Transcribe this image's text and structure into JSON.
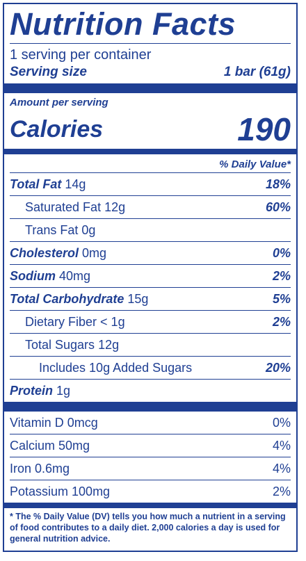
{
  "title": "Nutrition Facts",
  "servings_per_container": "1 serving per container",
  "serving_size_label": "Serving size",
  "serving_size_value": "1 bar (61g)",
  "amount_per_serving": "Amount per serving",
  "calories_label": "Calories",
  "calories_value": "190",
  "daily_value_header": "% Daily Value*",
  "nutrients": [
    {
      "name": "Total Fat",
      "amount": "14g",
      "dv": "18%"
    },
    {
      "name": "Saturated Fat",
      "amount": "12g",
      "dv": "60%"
    },
    {
      "name": "Trans Fat",
      "amount": "0g",
      "dv": ""
    },
    {
      "name": "Cholesterol",
      "amount": "0mg",
      "dv": "0%"
    },
    {
      "name": "Sodium",
      "amount": "40mg",
      "dv": "2%"
    },
    {
      "name": "Total Carbohydrate",
      "amount": "15g",
      "dv": "5%"
    },
    {
      "name": "Dietary Fiber",
      "amount": "< 1g",
      "dv": "2%"
    },
    {
      "name": "Total Sugars",
      "amount": "12g",
      "dv": ""
    },
    {
      "name": "Includes 10g Added Sugars",
      "amount": "",
      "dv": "20%"
    },
    {
      "name": "Protein",
      "amount": "1g",
      "dv": ""
    }
  ],
  "vitamins": [
    {
      "label": "Vitamin D 0mcg",
      "dv": "0%"
    },
    {
      "label": "Calcium 50mg",
      "dv": "4%"
    },
    {
      "label": "Iron 0.6mg",
      "dv": "4%"
    },
    {
      "label": "Potassium 100mg",
      "dv": "2%"
    }
  ],
  "footnote": "* The % Daily Value (DV) tells you how much a nutrient in a serving of food contributes to a daily diet. 2,000 calories a day is used for general nutrition advice.",
  "colors": {
    "ink": "#1f3f93",
    "background": "#ffffff"
  }
}
